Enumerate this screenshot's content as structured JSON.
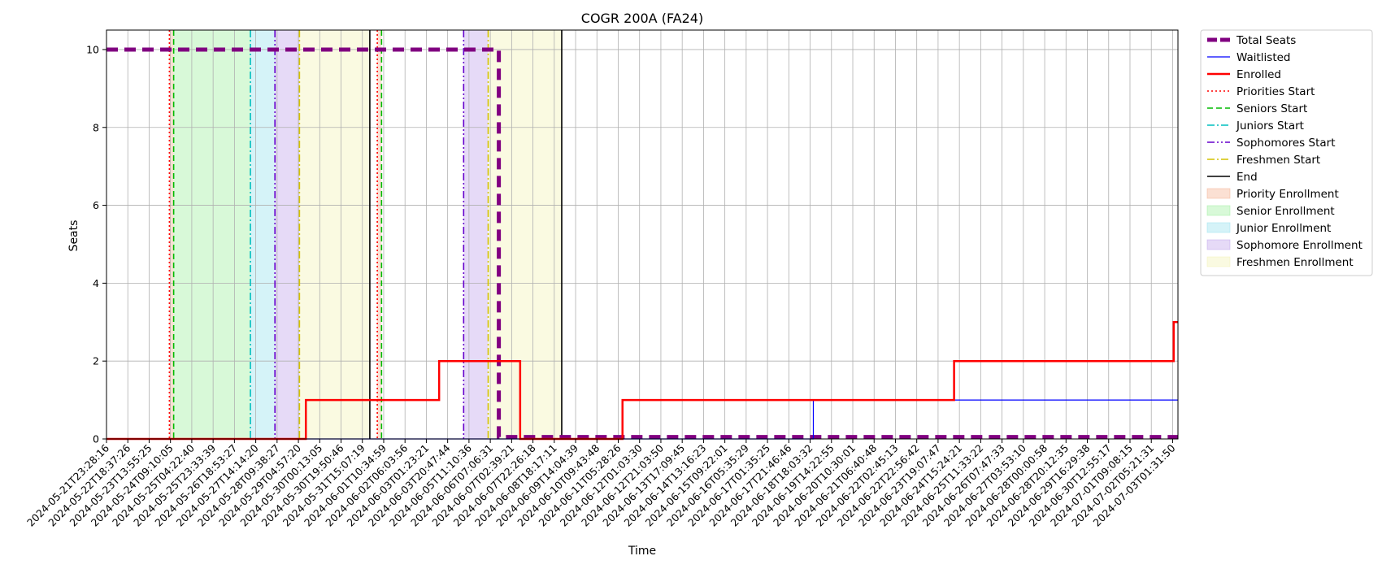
{
  "chart_data": {
    "type": "line",
    "title": "COGR 200A (FA24)",
    "xlabel": "Time",
    "ylabel": "Seats",
    "ylim": [
      0,
      10.5
    ],
    "y_ticks": [
      0,
      2,
      4,
      6,
      8,
      10
    ],
    "x_tick_labels": [
      "2024-05-21T23:28:16",
      "2024-05-22T18:37:26",
      "2024-05-23T13:55:25",
      "2024-05-24T09:10:05",
      "2024-05-25T04:22:40",
      "2024-05-25T23:33:39",
      "2024-05-26T18:53:27",
      "2024-05-27T14:14:20",
      "2024-05-28T09:38:27",
      "2024-05-29T04:57:20",
      "2024-05-30T00:13:05",
      "2024-05-30T19:50:46",
      "2024-05-31T15:07:19",
      "2024-06-01T10:34:59",
      "2024-06-02T06:03:56",
      "2024-06-03T01:23:21",
      "2024-06-03T20:47:44",
      "2024-06-05T11:10:36",
      "2024-06-06T07:06:31",
      "2024-06-07T02:39:21",
      "2024-06-07T22:26:18",
      "2024-06-08T18:17:11",
      "2024-06-09T14:04:39",
      "2024-06-10T09:43:48",
      "2024-06-11T05:28:26",
      "2024-06-12T01:03:30",
      "2024-06-12T21:03:50",
      "2024-06-13T17:09:45",
      "2024-06-14T13:16:23",
      "2024-06-15T09:22:01",
      "2024-06-16T05:35:29",
      "2024-06-17T01:35:25",
      "2024-06-17T21:46:46",
      "2024-06-18T18:03:32",
      "2024-06-19T14:22:55",
      "2024-06-20T10:30:01",
      "2024-06-21T06:40:48",
      "2024-06-22T02:45:13",
      "2024-06-22T22:56:42",
      "2024-06-23T19:07:47",
      "2024-06-24T15:24:21",
      "2024-06-25T11:33:22",
      "2024-06-26T07:47:33",
      "2024-06-27T03:53:10",
      "2024-06-28T00:00:58",
      "2024-06-28T20:12:35",
      "2024-06-29T16:29:38",
      "2024-06-30T12:55:17",
      "2024-07-01T09:08:15",
      "2024-07-02T05:21:31",
      "2024-07-03T01:31:50"
    ],
    "x_range": [
      0,
      50.25
    ],
    "grid": true,
    "legend_position": "outside-right",
    "series": [
      {
        "name": "Total Seats",
        "color": "#800080",
        "style": "dashed-thick",
        "steps": [
          [
            0,
            10
          ],
          [
            18.4,
            10
          ],
          [
            18.4,
            0.05
          ],
          [
            50.25,
            0.05
          ]
        ]
      },
      {
        "name": "Waitlisted",
        "color": "#0000ff",
        "style": "solid-thin",
        "steps": [
          [
            0,
            0
          ],
          [
            33.15,
            0
          ],
          [
            33.15,
            1
          ],
          [
            50.25,
            1
          ]
        ]
      },
      {
        "name": "Enrolled",
        "color": "#ff0000",
        "style": "solid-thick",
        "steps": [
          [
            0,
            0
          ],
          [
            9.35,
            0
          ],
          [
            9.35,
            1
          ],
          [
            15.6,
            1
          ],
          [
            15.6,
            2
          ],
          [
            19.4,
            2
          ],
          [
            19.4,
            0
          ],
          [
            24.2,
            0
          ],
          [
            24.2,
            1
          ],
          [
            39.75,
            1
          ],
          [
            39.75,
            2
          ],
          [
            50.05,
            2
          ],
          [
            50.05,
            3
          ],
          [
            50.25,
            3
          ]
        ]
      }
    ],
    "vlines": [
      {
        "name": "Priorities Start",
        "color": "#ff0000",
        "style": "dotted",
        "x": [
          2.95,
          12.7
        ]
      },
      {
        "name": "Seniors Start",
        "color": "#00bb00",
        "style": "dashed",
        "x": [
          3.15,
          12.9
        ]
      },
      {
        "name": "Juniors Start",
        "color": "#00bfbf",
        "style": "dashdot",
        "x": [
          6.75
        ]
      },
      {
        "name": "Sophomores Start",
        "color": "#6600cc",
        "style": "dashdotdot",
        "x": [
          7.9,
          16.75
        ]
      },
      {
        "name": "Freshmen Start",
        "color": "#d4c200",
        "style": "dashdot",
        "x": [
          9.05,
          17.9
        ]
      },
      {
        "name": "End",
        "color": "#000000",
        "style": "solid",
        "x": [
          12.35,
          21.35
        ]
      }
    ],
    "spans": [
      {
        "name": "Priority Enrollment",
        "color": "#f4a582",
        "from": [
          2.95,
          12.7
        ],
        "to": [
          3.15,
          12.9
        ]
      },
      {
        "name": "Senior Enrollment",
        "color": "#90ee90",
        "from": [
          3.15
        ],
        "to": [
          6.75
        ]
      },
      {
        "name": "Junior Enrollment",
        "color": "#87dceb",
        "from": [
          6.75
        ],
        "to": [
          7.9
        ]
      },
      {
        "name": "Sophomore Enrollment",
        "color": "#b695e8",
        "from": [
          7.9,
          16.75
        ],
        "to": [
          9.05,
          17.9
        ]
      },
      {
        "name": "Freshmen Enrollment",
        "color": "#f0f0a8",
        "from": [
          9.05,
          17.9
        ],
        "to": [
          12.35,
          21.35
        ]
      }
    ],
    "legend": [
      {
        "label": "Total Seats",
        "kind": "line",
        "color": "#800080",
        "style": "dashed-thick"
      },
      {
        "label": "Waitlisted",
        "kind": "line",
        "color": "#0000ff",
        "style": "solid-thin"
      },
      {
        "label": "Enrolled",
        "kind": "line",
        "color": "#ff0000",
        "style": "solid-thick"
      },
      {
        "label": "Priorities Start",
        "kind": "line",
        "color": "#ff0000",
        "style": "dotted"
      },
      {
        "label": "Seniors Start",
        "kind": "line",
        "color": "#00bb00",
        "style": "dashed"
      },
      {
        "label": "Juniors Start",
        "kind": "line",
        "color": "#00bfbf",
        "style": "dashdot"
      },
      {
        "label": "Sophomores Start",
        "kind": "line",
        "color": "#6600cc",
        "style": "dashdotdot"
      },
      {
        "label": "Freshmen Start",
        "kind": "line",
        "color": "#d4c200",
        "style": "dashdot"
      },
      {
        "label": "End",
        "kind": "line",
        "color": "#000000",
        "style": "solid"
      },
      {
        "label": "Priority Enrollment",
        "kind": "patch",
        "color": "#f4a582"
      },
      {
        "label": "Senior Enrollment",
        "kind": "patch",
        "color": "#90ee90"
      },
      {
        "label": "Junior Enrollment",
        "kind": "patch",
        "color": "#87dceb"
      },
      {
        "label": "Sophomore Enrollment",
        "kind": "patch",
        "color": "#b695e8"
      },
      {
        "label": "Freshmen Enrollment",
        "kind": "patch",
        "color": "#f0f0a8"
      }
    ]
  }
}
